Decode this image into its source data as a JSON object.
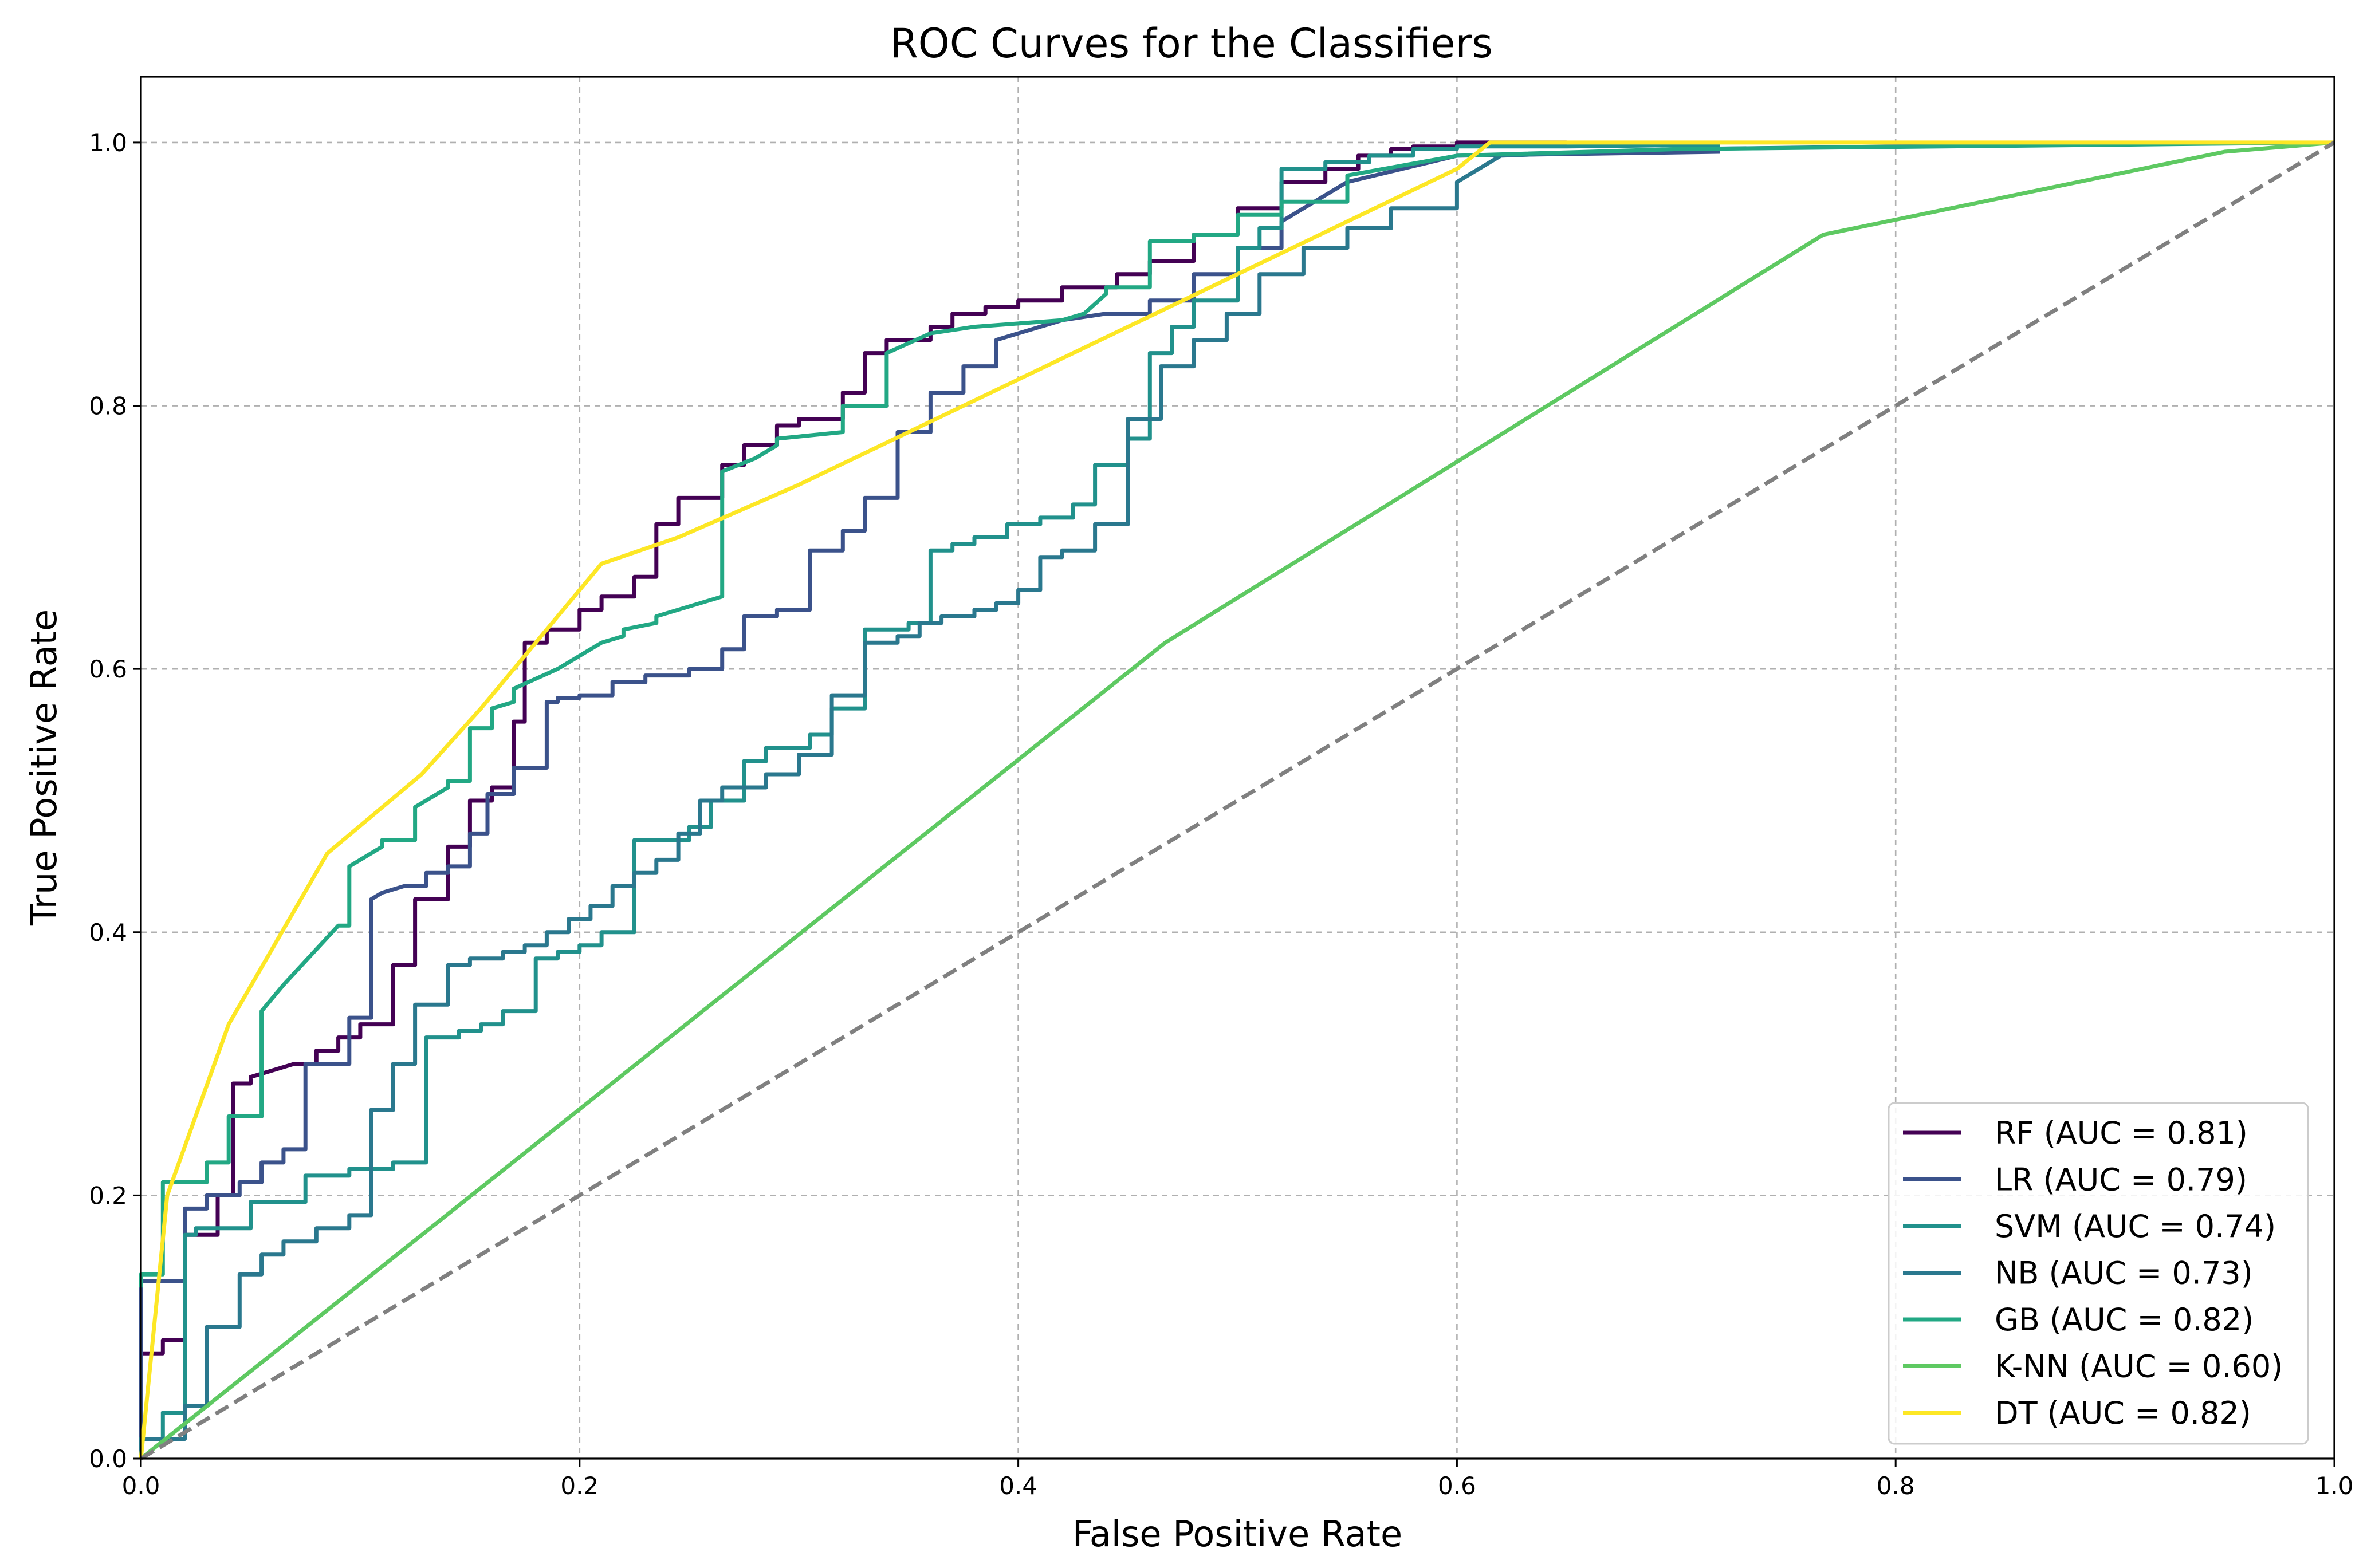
{
  "chart_data": {
    "type": "line",
    "title": "ROC Curves for the Classifiers",
    "xlabel": "False Positive Rate",
    "ylabel": "True Positive Rate",
    "xlim": [
      0.0,
      1.0
    ],
    "ylim": [
      0.0,
      1.05
    ],
    "xticks": [
      0.0,
      0.2,
      0.4,
      0.6,
      0.8,
      1.0
    ],
    "yticks": [
      0.0,
      0.2,
      0.4,
      0.6,
      0.8,
      1.0
    ],
    "xtick_labels": [
      "0.0",
      "0.2",
      "0.4",
      "0.6",
      "0.8",
      "1.0"
    ],
    "ytick_labels": [
      "0.0",
      "0.2",
      "0.4",
      "0.6",
      "0.8",
      "1.0"
    ],
    "grid": true,
    "legend_position": "lower-right",
    "chance_line": {
      "x": [
        0,
        1
      ],
      "y": [
        0,
        1
      ],
      "color": "#808080",
      "style": "dashed"
    },
    "series": [
      {
        "name": "RF",
        "label": "RF (AUC = 0.81)",
        "color": "#440154",
        "auc": 0.81,
        "x": [
          0,
          0,
          0.01,
          0.01,
          0.02,
          0.02,
          0.035,
          0.035,
          0.042,
          0.042,
          0.05,
          0.05,
          0.06,
          0.07,
          0.08,
          0.08,
          0.09,
          0.09,
          0.1,
          0.1,
          0.115,
          0.115,
          0.125,
          0.125,
          0.14,
          0.14,
          0.15,
          0.15,
          0.16,
          0.16,
          0.17,
          0.17,
          0.175,
          0.175,
          0.185,
          0.185,
          0.2,
          0.2,
          0.21,
          0.21,
          0.225,
          0.225,
          0.235,
          0.235,
          0.245,
          0.245,
          0.265,
          0.265,
          0.275,
          0.275,
          0.29,
          0.29,
          0.3,
          0.3,
          0.32,
          0.32,
          0.33,
          0.33,
          0.34,
          0.34,
          0.36,
          0.36,
          0.37,
          0.37,
          0.385,
          0.385,
          0.4,
          0.4,
          0.42,
          0.42,
          0.445,
          0.445,
          0.46,
          0.46,
          0.48,
          0.48,
          0.5,
          0.5,
          0.52,
          0.52,
          0.54,
          0.54,
          0.555,
          0.555,
          0.57,
          0.57,
          0.58,
          0.58,
          0.6,
          0.6,
          0.62,
          0.65
        ],
        "y": [
          0,
          0.08,
          0.08,
          0.09,
          0.09,
          0.17,
          0.17,
          0.2,
          0.2,
          0.285,
          0.285,
          0.29,
          0.295,
          0.3,
          0.3,
          0.31,
          0.31,
          0.32,
          0.32,
          0.33,
          0.33,
          0.375,
          0.375,
          0.425,
          0.425,
          0.465,
          0.465,
          0.5,
          0.5,
          0.51,
          0.51,
          0.56,
          0.56,
          0.62,
          0.62,
          0.63,
          0.63,
          0.645,
          0.645,
          0.655,
          0.655,
          0.67,
          0.67,
          0.71,
          0.71,
          0.73,
          0.73,
          0.755,
          0.755,
          0.77,
          0.77,
          0.785,
          0.785,
          0.79,
          0.79,
          0.81,
          0.81,
          0.84,
          0.84,
          0.85,
          0.85,
          0.86,
          0.86,
          0.87,
          0.87,
          0.875,
          0.875,
          0.88,
          0.88,
          0.89,
          0.89,
          0.9,
          0.9,
          0.91,
          0.91,
          0.93,
          0.93,
          0.95,
          0.95,
          0.97,
          0.97,
          0.98,
          0.98,
          0.99,
          0.99,
          0.995,
          0.995,
          0.997,
          0.997,
          1.0,
          1.0,
          1.0
        ]
      },
      {
        "name": "LR",
        "label": "LR (AUC = 0.79)",
        "color": "#3b528b",
        "auc": 0.79,
        "x": [
          0,
          0,
          0.02,
          0.02,
          0.03,
          0.03,
          0.045,
          0.045,
          0.055,
          0.055,
          0.065,
          0.065,
          0.075,
          0.075,
          0.095,
          0.095,
          0.105,
          0.105,
          0.11,
          0.12,
          0.13,
          0.13,
          0.14,
          0.14,
          0.15,
          0.15,
          0.158,
          0.158,
          0.17,
          0.17,
          0.185,
          0.185,
          0.19,
          0.19,
          0.2,
          0.2,
          0.215,
          0.215,
          0.23,
          0.23,
          0.25,
          0.25,
          0.265,
          0.265,
          0.275,
          0.275,
          0.29,
          0.29,
          0.305,
          0.305,
          0.32,
          0.32,
          0.33,
          0.33,
          0.345,
          0.345,
          0.36,
          0.36,
          0.375,
          0.375,
          0.39,
          0.39,
          0.41,
          0.42,
          0.44,
          0.46,
          0.46,
          0.48,
          0.48,
          0.5,
          0.5,
          0.52,
          0.52,
          0.55,
          0.6,
          0.72
        ],
        "y": [
          0,
          0.135,
          0.135,
          0.19,
          0.19,
          0.2,
          0.2,
          0.21,
          0.21,
          0.225,
          0.225,
          0.235,
          0.235,
          0.3,
          0.3,
          0.335,
          0.335,
          0.425,
          0.43,
          0.435,
          0.435,
          0.445,
          0.445,
          0.45,
          0.45,
          0.475,
          0.475,
          0.505,
          0.505,
          0.525,
          0.525,
          0.575,
          0.575,
          0.578,
          0.578,
          0.58,
          0.58,
          0.59,
          0.59,
          0.595,
          0.595,
          0.6,
          0.6,
          0.615,
          0.615,
          0.64,
          0.64,
          0.645,
          0.645,
          0.69,
          0.69,
          0.705,
          0.705,
          0.73,
          0.73,
          0.78,
          0.78,
          0.81,
          0.81,
          0.83,
          0.83,
          0.85,
          0.86,
          0.865,
          0.87,
          0.87,
          0.88,
          0.88,
          0.9,
          0.9,
          0.92,
          0.92,
          0.94,
          0.97,
          0.99,
          0.993
        ]
      },
      {
        "name": "SVM",
        "label": "SVM (AUC = 0.74)",
        "color": "#21918c",
        "auc": 0.74,
        "x": [
          0,
          0,
          0.01,
          0.01,
          0.02,
          0.02,
          0.025,
          0.025,
          0.05,
          0.05,
          0.075,
          0.075,
          0.095,
          0.095,
          0.115,
          0.115,
          0.13,
          0.13,
          0.145,
          0.145,
          0.155,
          0.155,
          0.165,
          0.165,
          0.18,
          0.18,
          0.19,
          0.19,
          0.2,
          0.2,
          0.21,
          0.21,
          0.225,
          0.225,
          0.25,
          0.25,
          0.26,
          0.26,
          0.275,
          0.275,
          0.285,
          0.285,
          0.305,
          0.305,
          0.315,
          0.315,
          0.33,
          0.33,
          0.35,
          0.35,
          0.36,
          0.36,
          0.37,
          0.37,
          0.38,
          0.38,
          0.395,
          0.395,
          0.41,
          0.41,
          0.425,
          0.425,
          0.435,
          0.435,
          0.45,
          0.45,
          0.46,
          0.46,
          0.47,
          0.47,
          0.48,
          0.48,
          0.5,
          0.5,
          0.51,
          0.51,
          0.52,
          0.52,
          0.54,
          0.54,
          0.56,
          0.56,
          0.58,
          0.58,
          0.6,
          0.6,
          0.62,
          0.65,
          0.7,
          0.72
        ],
        "y": [
          0,
          0.015,
          0.015,
          0.035,
          0.035,
          0.17,
          0.17,
          0.175,
          0.175,
          0.195,
          0.195,
          0.215,
          0.215,
          0.22,
          0.22,
          0.225,
          0.225,
          0.32,
          0.32,
          0.325,
          0.325,
          0.33,
          0.33,
          0.34,
          0.34,
          0.38,
          0.38,
          0.385,
          0.385,
          0.39,
          0.39,
          0.4,
          0.4,
          0.47,
          0.47,
          0.48,
          0.48,
          0.5,
          0.5,
          0.53,
          0.53,
          0.54,
          0.54,
          0.55,
          0.55,
          0.57,
          0.57,
          0.63,
          0.63,
          0.635,
          0.635,
          0.69,
          0.69,
          0.695,
          0.695,
          0.7,
          0.7,
          0.71,
          0.71,
          0.715,
          0.715,
          0.725,
          0.725,
          0.755,
          0.755,
          0.775,
          0.775,
          0.84,
          0.84,
          0.86,
          0.86,
          0.88,
          0.88,
          0.92,
          0.92,
          0.935,
          0.935,
          0.98,
          0.98,
          0.985,
          0.985,
          0.99,
          0.99,
          0.995,
          0.995,
          0.997,
          0.997,
          0.997,
          0.998,
          0.998
        ]
      },
      {
        "name": "NB",
        "label": "NB (AUC = 0.73)",
        "color": "#2a788e",
        "auc": 0.73,
        "x": [
          0,
          0,
          0.02,
          0.02,
          0.03,
          0.03,
          0.045,
          0.045,
          0.055,
          0.055,
          0.065,
          0.065,
          0.08,
          0.08,
          0.095,
          0.095,
          0.105,
          0.105,
          0.115,
          0.115,
          0.125,
          0.125,
          0.14,
          0.14,
          0.15,
          0.15,
          0.165,
          0.165,
          0.175,
          0.175,
          0.185,
          0.185,
          0.195,
          0.195,
          0.205,
          0.205,
          0.215,
          0.215,
          0.225,
          0.225,
          0.235,
          0.235,
          0.245,
          0.245,
          0.255,
          0.255,
          0.265,
          0.265,
          0.285,
          0.285,
          0.3,
          0.3,
          0.315,
          0.315,
          0.33,
          0.33,
          0.345,
          0.345,
          0.355,
          0.355,
          0.365,
          0.365,
          0.38,
          0.38,
          0.39,
          0.39,
          0.4,
          0.4,
          0.41,
          0.41,
          0.42,
          0.42,
          0.435,
          0.435,
          0.45,
          0.45,
          0.465,
          0.465,
          0.48,
          0.48,
          0.495,
          0.495,
          0.51,
          0.51,
          0.53,
          0.53,
          0.55,
          0.55,
          0.57,
          0.57,
          0.6,
          0.6,
          0.62,
          0.7,
          0.85
        ],
        "y": [
          0,
          0.015,
          0.015,
          0.04,
          0.04,
          0.1,
          0.1,
          0.14,
          0.14,
          0.155,
          0.155,
          0.165,
          0.165,
          0.175,
          0.175,
          0.185,
          0.185,
          0.265,
          0.265,
          0.3,
          0.3,
          0.345,
          0.345,
          0.375,
          0.375,
          0.38,
          0.38,
          0.385,
          0.385,
          0.39,
          0.39,
          0.4,
          0.4,
          0.41,
          0.41,
          0.42,
          0.42,
          0.435,
          0.435,
          0.445,
          0.445,
          0.455,
          0.455,
          0.475,
          0.475,
          0.5,
          0.5,
          0.51,
          0.51,
          0.52,
          0.52,
          0.535,
          0.535,
          0.58,
          0.58,
          0.62,
          0.62,
          0.625,
          0.625,
          0.635,
          0.635,
          0.64,
          0.64,
          0.645,
          0.645,
          0.65,
          0.65,
          0.66,
          0.66,
          0.685,
          0.685,
          0.69,
          0.69,
          0.71,
          0.71,
          0.79,
          0.79,
          0.83,
          0.83,
          0.85,
          0.85,
          0.87,
          0.87,
          0.9,
          0.9,
          0.92,
          0.92,
          0.935,
          0.935,
          0.95,
          0.95,
          0.97,
          0.99,
          0.995,
          0.998
        ]
      },
      {
        "name": "GB",
        "label": "GB (AUC = 0.82)",
        "color": "#22a884",
        "auc": 0.82,
        "x": [
          0,
          0,
          0.01,
          0.01,
          0.03,
          0.03,
          0.04,
          0.04,
          0.055,
          0.055,
          0.065,
          0.09,
          0.095,
          0.095,
          0.1,
          0.11,
          0.11,
          0.125,
          0.125,
          0.14,
          0.14,
          0.15,
          0.15,
          0.16,
          0.16,
          0.17,
          0.17,
          0.19,
          0.21,
          0.22,
          0.22,
          0.235,
          0.235,
          0.255,
          0.265,
          0.265,
          0.28,
          0.29,
          0.29,
          0.32,
          0.32,
          0.34,
          0.34,
          0.36,
          0.38,
          0.42,
          0.43,
          0.43,
          0.44,
          0.44,
          0.46,
          0.46,
          0.48,
          0.48,
          0.5,
          0.5,
          0.52,
          0.52,
          0.55,
          0.55,
          0.6,
          0.7,
          1.0
        ],
        "y": [
          0.13,
          0.14,
          0.14,
          0.21,
          0.21,
          0.225,
          0.225,
          0.26,
          0.26,
          0.34,
          0.36,
          0.405,
          0.405,
          0.45,
          0.455,
          0.465,
          0.47,
          0.47,
          0.495,
          0.51,
          0.515,
          0.515,
          0.555,
          0.555,
          0.57,
          0.575,
          0.585,
          0.6,
          0.62,
          0.625,
          0.63,
          0.635,
          0.64,
          0.65,
          0.655,
          0.75,
          0.76,
          0.77,
          0.775,
          0.78,
          0.8,
          0.8,
          0.84,
          0.855,
          0.86,
          0.865,
          0.87,
          0.87,
          0.885,
          0.89,
          0.89,
          0.925,
          0.925,
          0.93,
          0.93,
          0.945,
          0.945,
          0.955,
          0.955,
          0.975,
          0.99,
          0.995,
          1.0
        ]
      },
      {
        "name": "K-NN",
        "label": "K-NN (AUC = 0.60)",
        "color": "#5ec962",
        "auc": 0.6,
        "x": [
          0.0,
          0.467,
          0.767,
          0.95,
          1.0
        ],
        "y": [
          0.0,
          0.62,
          0.93,
          0.993,
          1.0
        ]
      },
      {
        "name": "DT",
        "label": "DT (AUC = 0.82)",
        "color": "#fde725",
        "auc": 0.82,
        "x": [
          0.0,
          0.012,
          0.04,
          0.085,
          0.128,
          0.155,
          0.21,
          0.245,
          0.3,
          0.4,
          0.5,
          0.6,
          0.615,
          0.7,
          1.0
        ],
        "y": [
          0.0,
          0.2,
          0.33,
          0.46,
          0.52,
          0.57,
          0.68,
          0.7,
          0.74,
          0.82,
          0.9,
          0.98,
          1.0,
          1.0,
          1.0
        ]
      }
    ]
  }
}
